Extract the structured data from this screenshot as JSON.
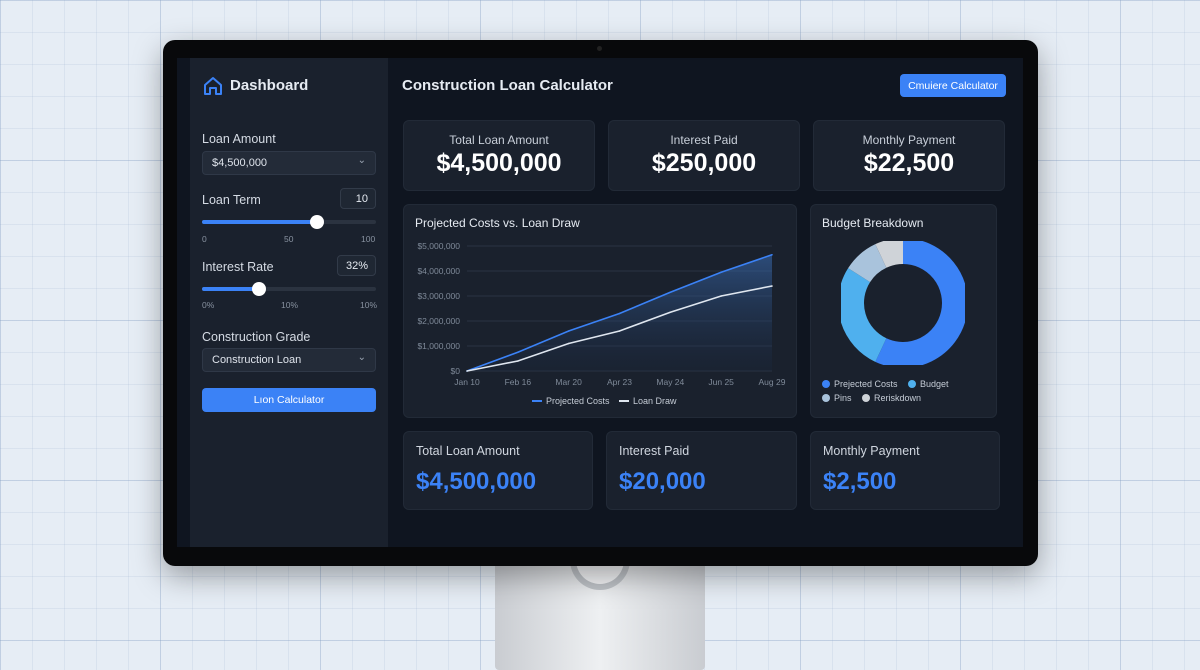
{
  "sidebar": {
    "title": "Dashboard",
    "loan_amount_label": "Loan Amount",
    "loan_amount_value": "$4,500,000",
    "loan_term_label": "Loan Term",
    "loan_term_value": "10",
    "loan_term_fraction": 0.66,
    "loan_term_ticks": [
      "0",
      "50",
      "100"
    ],
    "interest_rate_label": "Interest Rate",
    "interest_rate_value": "32%",
    "interest_rate_fraction": 0.33,
    "interest_rate_ticks": [
      "0%",
      "10%",
      "10%"
    ],
    "grade_label": "Construction Grade",
    "grade_value": "Construction Loan",
    "calc_button": "Lıon Calculator"
  },
  "header": {
    "title": "Construction Loan Calculator",
    "button": "Cmuiere Calculator"
  },
  "top_cards": [
    {
      "label": "Total Loan Amount",
      "value": "$4,500,000"
    },
    {
      "label": "Interest Paid",
      "value": "$250,000"
    },
    {
      "label": "Monthly Payment",
      "value": "$22,500"
    }
  ],
  "bottom_cards": [
    {
      "label": "Total Loan Amount",
      "value": "$4,500,000"
    },
    {
      "label": "Interest Paid",
      "value": "$20,000"
    },
    {
      "label": "Monthly Payment",
      "value": "$2,500"
    }
  ],
  "colors": {
    "accent": "#3b82f6",
    "light_blue": "#4fb0ee",
    "pale_blue": "#9bbbd8",
    "gray": "#c9ccd1"
  },
  "chart_data": [
    {
      "type": "line",
      "title": "Projected Costs vs. Loan Draw",
      "categories": [
        "Jan 10",
        "Feb 16",
        "Mar 20",
        "Apr 23",
        "May 24",
        "Jun 25",
        "Aug 29"
      ],
      "yticks": [
        "$0",
        "$1,000,000",
        "$2,000,000",
        "$3,000,000",
        "$4,000,000",
        "$5,000,000"
      ],
      "ylim": [
        0,
        5000000
      ],
      "grid": true,
      "legend": "bottom",
      "series": [
        {
          "name": "Projected Costs",
          "color": "#3b82f6",
          "values": [
            0,
            750000,
            1600000,
            2300000,
            3150000,
            3950000,
            4650000
          ]
        },
        {
          "name": "Loan Draw",
          "color": "#dfe6ef",
          "values": [
            0,
            400000,
            1100000,
            1600000,
            2350000,
            3000000,
            3400000
          ]
        }
      ]
    },
    {
      "type": "pie",
      "title": "Budget Breakdown",
      "legend": "bottom",
      "slices": [
        {
          "name": "Prejected Costs",
          "value": 57,
          "color": "#3b82f6"
        },
        {
          "name": "Budget",
          "value": 27,
          "color": "#4fb0ee"
        },
        {
          "name": "Pins",
          "value": 9,
          "color": "#a9c3dc"
        },
        {
          "name": "Reriskdown",
          "value": 7,
          "color": "#cfd3d8"
        }
      ]
    }
  ]
}
